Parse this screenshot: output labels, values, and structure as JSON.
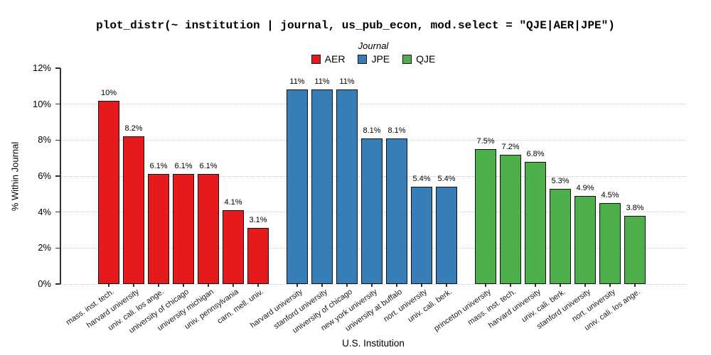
{
  "chart_data": {
    "type": "bar",
    "title": "plot_distr(~ institution | journal, us_pub_econ, mod.select = \"QJE|AER|JPE\")",
    "xlabel": "U.S. Institution",
    "ylabel": "% Within Journal",
    "ylim": [
      0,
      12
    ],
    "y_ticks": [
      0,
      2,
      4,
      6,
      8,
      10,
      12
    ],
    "y_tick_labels": [
      "0%",
      "2%",
      "4%",
      "6%",
      "8%",
      "10%",
      "12%"
    ],
    "grid": "horizontal-dotted",
    "legend": {
      "title": "Journal",
      "position": "top-center"
    },
    "series": [
      {
        "name": "AER",
        "color": "#e41a1c",
        "bars": [
          {
            "institution": "mass. inst. tech.",
            "value": 10.2,
            "label": "10%"
          },
          {
            "institution": "harvard university",
            "value": 8.2,
            "label": "8.2%"
          },
          {
            "institution": "univ. cali. los ange.",
            "value": 6.1,
            "label": "6.1%"
          },
          {
            "institution": "university of chicago",
            "value": 6.1,
            "label": "6.1%"
          },
          {
            "institution": "university michigan",
            "value": 6.1,
            "label": "6.1%"
          },
          {
            "institution": "univ. pennsylvania",
            "value": 4.1,
            "label": "4.1%"
          },
          {
            "institution": "carn. mell. univ.",
            "value": 3.1,
            "label": "3.1%"
          }
        ]
      },
      {
        "name": "JPE",
        "color": "#377eb8",
        "bars": [
          {
            "institution": "harvard university",
            "value": 10.8,
            "label": "11%"
          },
          {
            "institution": "stanford university",
            "value": 10.8,
            "label": "11%"
          },
          {
            "institution": "university of chicago",
            "value": 10.8,
            "label": "11%"
          },
          {
            "institution": "new york university",
            "value": 8.1,
            "label": "8.1%"
          },
          {
            "institution": "university at buffalo",
            "value": 8.1,
            "label": "8.1%"
          },
          {
            "institution": "nort. university",
            "value": 5.4,
            "label": "5.4%"
          },
          {
            "institution": "univ. cali. berk.",
            "value": 5.4,
            "label": "5.4%"
          }
        ]
      },
      {
        "name": "QJE",
        "color": "#4daf4a",
        "bars": [
          {
            "institution": "princeton university",
            "value": 7.5,
            "label": "7.5%"
          },
          {
            "institution": "mass. inst. tech.",
            "value": 7.2,
            "label": "7.2%"
          },
          {
            "institution": "harvard university",
            "value": 6.8,
            "label": "6.8%"
          },
          {
            "institution": "univ. cali. berk.",
            "value": 5.3,
            "label": "5.3%"
          },
          {
            "institution": "stanford university",
            "value": 4.9,
            "label": "4.9%"
          },
          {
            "institution": "nort. university",
            "value": 4.5,
            "label": "4.5%"
          },
          {
            "institution": "univ. cali. los ange.",
            "value": 3.8,
            "label": "3.8%"
          }
        ]
      }
    ]
  }
}
